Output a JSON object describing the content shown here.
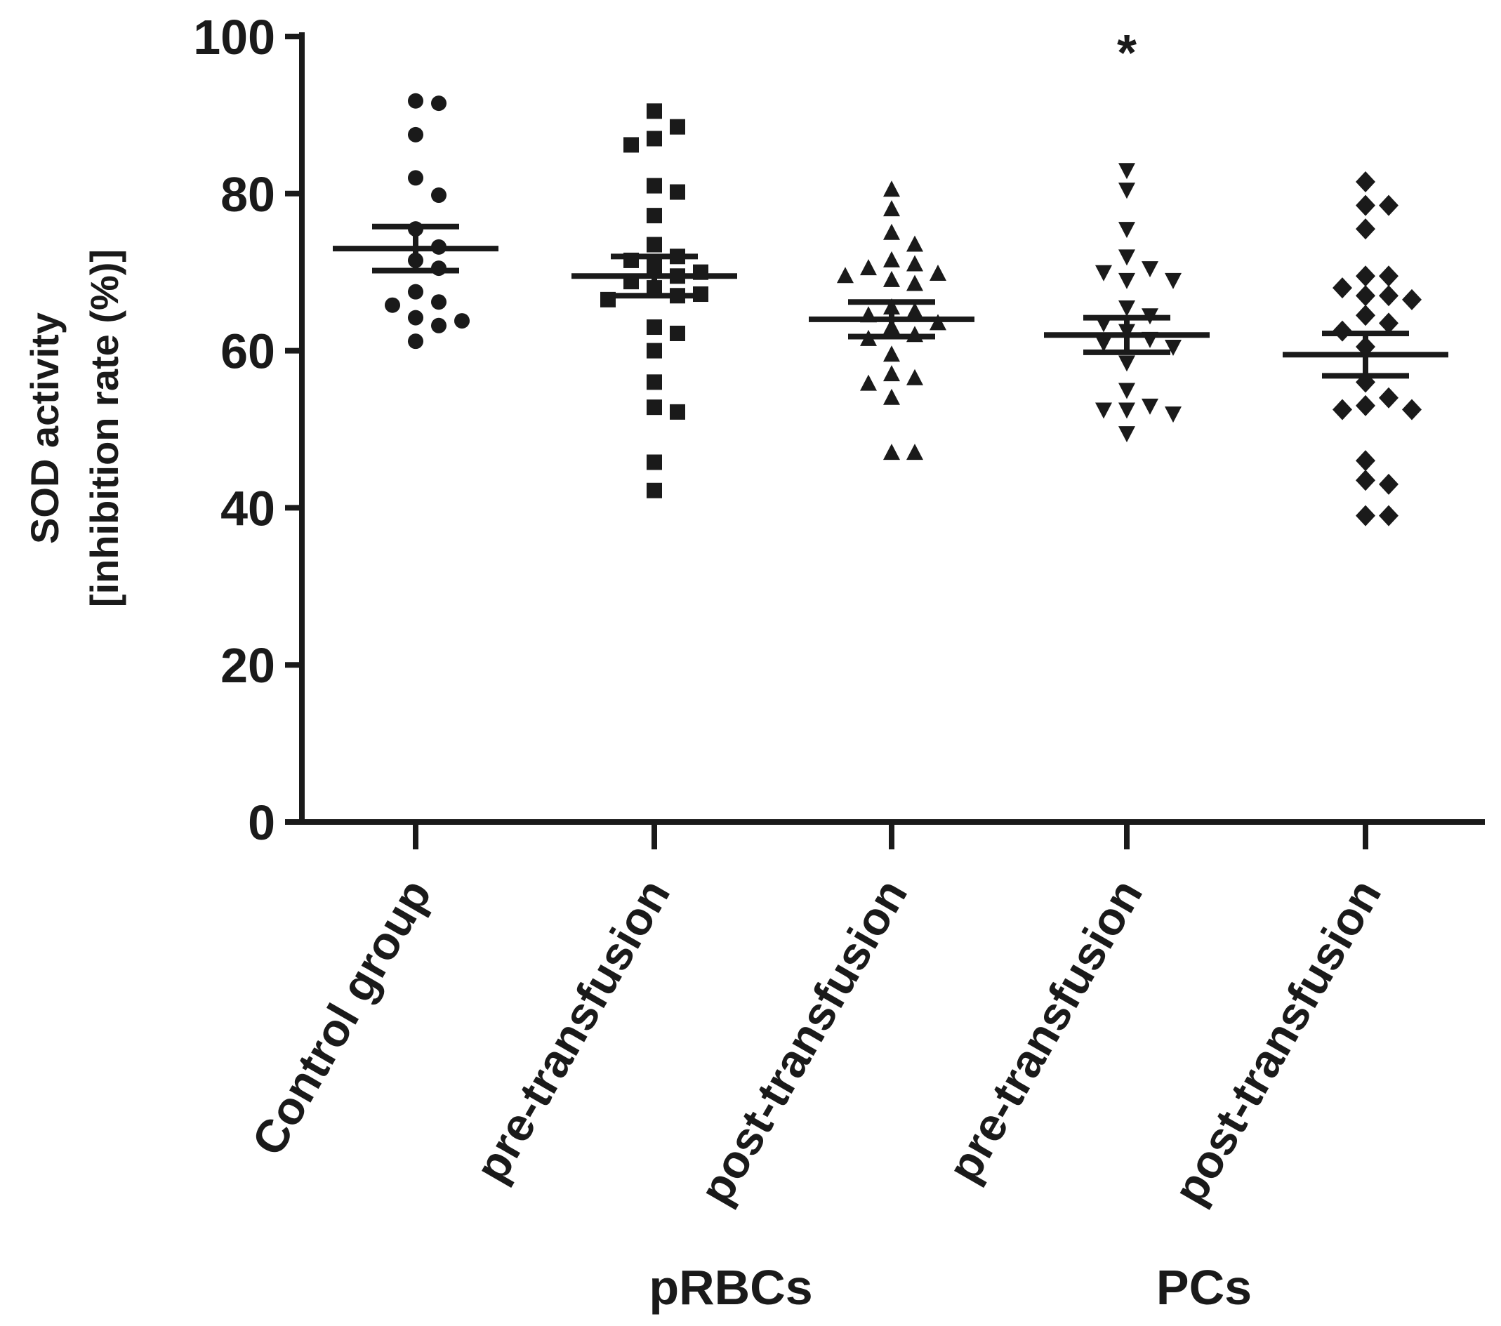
{
  "chart_data": {
    "type": "scatter",
    "title": "",
    "ylabel_lines": [
      "SOD activity",
      "[inhibition rate (%)]"
    ],
    "xlabel": "",
    "ylim": [
      0,
      100
    ],
    "yticks": [
      0,
      20,
      40,
      60,
      80,
      100
    ],
    "categories": [
      "Control group",
      "pre-transfusion",
      "post-transfusion",
      "pre-transfusion",
      "post-transfusion"
    ],
    "group_labels": [
      {
        "label": "pRBCs",
        "spans": [
          1,
          2
        ]
      },
      {
        "label": "PCs",
        "spans": [
          3,
          4
        ]
      }
    ],
    "significance": [
      {
        "category_index": 3,
        "label": "*"
      }
    ],
    "series": [
      {
        "name": "Control group",
        "marker": "circle",
        "values": [
          91.8,
          91.5,
          87.5,
          82.0,
          79.8,
          75.5,
          73.2,
          71.5,
          70.5,
          67.5,
          66.2,
          65.8,
          64.2,
          63.8,
          63.2,
          61.2
        ],
        "mean": 73.0,
        "sem": 2.8
      },
      {
        "name": "pRBCs pre-transfusion",
        "marker": "square",
        "values": [
          90.5,
          88.5,
          87.0,
          86.2,
          81.0,
          80.2,
          77.2,
          73.5,
          72.0,
          71.5,
          70.8,
          70.0,
          69.5,
          68.8,
          68.0,
          67.2,
          67.0,
          66.5,
          63.0,
          62.2,
          60.0,
          56.0,
          52.8,
          52.2,
          45.8,
          42.2
        ],
        "mean": 69.5,
        "sem": 2.5
      },
      {
        "name": "pRBCs post-transfusion",
        "marker": "triangle-up",
        "values": [
          80.5,
          78.0,
          75.0,
          73.5,
          71.5,
          71.0,
          70.5,
          69.8,
          69.5,
          69.0,
          68.5,
          65.5,
          65.0,
          64.5,
          63.5,
          63.0,
          62.0,
          61.5,
          59.5,
          57.0,
          56.5,
          55.8,
          54.0,
          47.0,
          47.0
        ],
        "mean": 64.0,
        "sem": 2.2
      },
      {
        "name": "PCs pre-transfusion",
        "marker": "triangle-down",
        "values": [
          83.0,
          80.5,
          75.5,
          72.0,
          70.5,
          70.0,
          69.0,
          69.0,
          65.5,
          64.5,
          63.5,
          62.5,
          61.5,
          61.0,
          60.5,
          58.5,
          55.0,
          53.0,
          52.5,
          52.5,
          52.0,
          49.5
        ],
        "mean": 62.0,
        "sem": 2.2
      },
      {
        "name": "PCs post-transfusion",
        "marker": "diamond",
        "values": [
          81.5,
          78.5,
          78.5,
          75.5,
          69.5,
          69.5,
          68.0,
          67.0,
          67.0,
          66.5,
          64.5,
          63.5,
          62.5,
          60.5,
          56.0,
          54.0,
          53.0,
          52.5,
          52.5,
          46.0,
          43.5,
          43.0,
          39.0,
          39.0
        ],
        "mean": 59.5,
        "sem": 2.7
      }
    ]
  }
}
